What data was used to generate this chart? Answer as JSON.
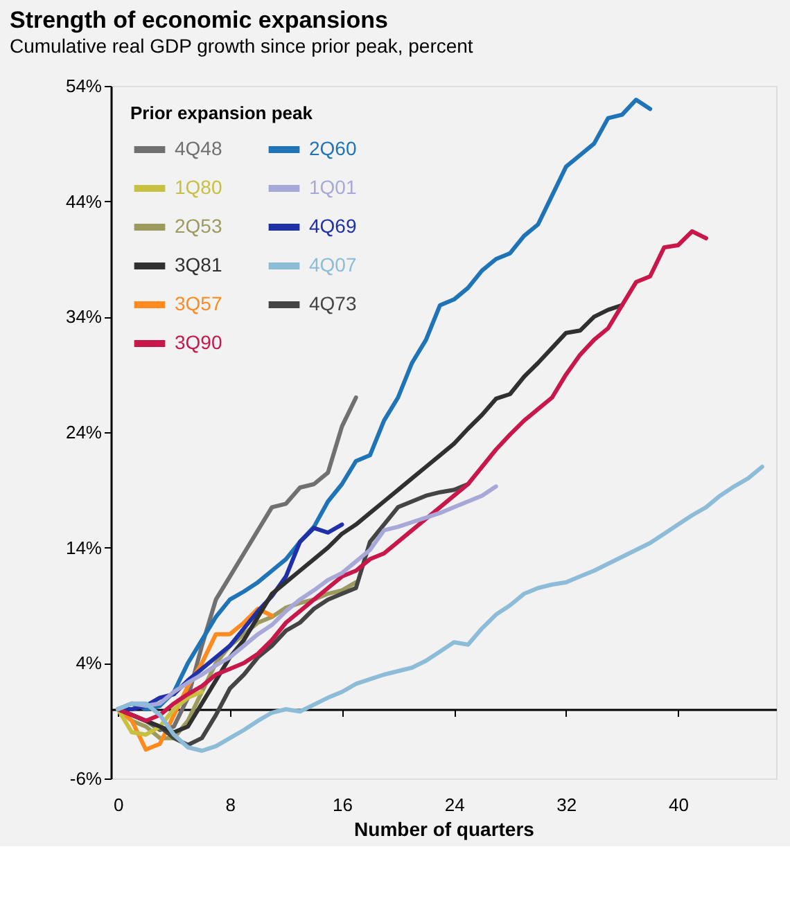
{
  "chart_data": {
    "type": "line",
    "title": "Strength of economic expansions",
    "subtitle": "Cumulative real GDP growth since prior peak, percent",
    "xlabel": "Number of quarters",
    "legend_title": "Prior expansion peak",
    "legend": "top left",
    "xlim": [
      -0.5,
      47
    ],
    "xticks": [
      0,
      8,
      16,
      24,
      32,
      40
    ],
    "ylim": [
      -6,
      54
    ],
    "yticks": [
      {
        "value": -6,
        "label": "-6%"
      },
      {
        "value": 4,
        "label": "4%"
      },
      {
        "value": 14,
        "label": "14%"
      },
      {
        "value": 24,
        "label": "24%"
      },
      {
        "value": 34,
        "label": "34%"
      },
      {
        "value": 44,
        "label": "44%"
      },
      {
        "value": 54,
        "label": "54%"
      }
    ],
    "series": [
      {
        "name": "4Q48",
        "color": "#707070",
        "x": [
          0,
          1,
          2,
          3,
          4,
          5,
          6,
          7,
          8,
          9,
          10,
          11,
          12,
          13,
          14,
          15,
          16,
          17
        ],
        "values": [
          0,
          -0.5,
          -1,
          -1.8,
          -1.5,
          1,
          5.5,
          9.5,
          11.5,
          13.5,
          15.5,
          17.5,
          17.8,
          19.2,
          19.5,
          20.5,
          24.5,
          27
        ]
      },
      {
        "name": "2Q53",
        "color": "#9c9a5c",
        "x": [
          0,
          1,
          2,
          3,
          4,
          5,
          6,
          7,
          8,
          9,
          10,
          11,
          12,
          13,
          14,
          15,
          16,
          17
        ],
        "values": [
          0,
          -1,
          -1.5,
          -2.5,
          -2.5,
          -1,
          1.5,
          4,
          5.5,
          6.5,
          7.5,
          8,
          8.8,
          9.2,
          9.5,
          10,
          10.3,
          11
        ]
      },
      {
        "name": "3Q57",
        "color": "#ff8a1e",
        "x": [
          0,
          1,
          2,
          3,
          4,
          5,
          6,
          7,
          8,
          9,
          10,
          11
        ],
        "values": [
          0,
          -1,
          -3.5,
          -3,
          -0.5,
          2,
          4,
          6.5,
          6.5,
          7.5,
          8.7,
          8.1
        ]
      },
      {
        "name": "2Q60",
        "color": "#1f74b8",
        "x": [
          0,
          1,
          2,
          3,
          4,
          5,
          6,
          7,
          8,
          9,
          10,
          11,
          12,
          13,
          14,
          15,
          16,
          17,
          18,
          19,
          20,
          21,
          22,
          23,
          24,
          25,
          26,
          27,
          28,
          29,
          30,
          31,
          32,
          33,
          34,
          35,
          36,
          37,
          38
        ],
        "values": [
          0,
          0.5,
          0,
          0.3,
          1.5,
          4,
          6,
          8,
          9.5,
          10.2,
          11,
          12,
          13,
          14.5,
          15.8,
          18,
          19.5,
          21.5,
          22,
          25,
          27,
          30,
          32,
          35,
          35.5,
          36.5,
          38,
          39,
          39.5,
          41,
          42,
          44.5,
          47,
          48,
          49,
          51.2,
          51.5,
          52.8,
          52
        ]
      },
      {
        "name": "4Q69",
        "color": "#2030a8",
        "x": [
          0,
          1,
          2,
          3,
          4,
          5,
          6,
          7,
          8,
          9,
          10,
          11,
          12,
          13,
          14,
          15,
          16
        ],
        "values": [
          0,
          0,
          0.3,
          1,
          1.3,
          2.5,
          3.5,
          4.5,
          5.5,
          7,
          8.5,
          9.8,
          11.5,
          14.5,
          15.7,
          15.3,
          16
        ]
      },
      {
        "name": "4Q73",
        "color": "#444444",
        "x": [
          0,
          1,
          2,
          3,
          4,
          5,
          6,
          7,
          8,
          9,
          10,
          11,
          12,
          13,
          14,
          15,
          16,
          17,
          18,
          19,
          20,
          21,
          22,
          23,
          24,
          25
        ],
        "values": [
          0,
          -0.5,
          -1,
          -1.5,
          -2.5,
          -3.1,
          -2.5,
          -0.5,
          1.8,
          3,
          4.5,
          5.5,
          6.8,
          7.5,
          8.7,
          9.5,
          10,
          10.5,
          14.5,
          16,
          17.5,
          18,
          18.5,
          18.8,
          19,
          19.5
        ]
      },
      {
        "name": "1Q80",
        "color": "#c8c040",
        "x": [
          0,
          1,
          2,
          3,
          4,
          5,
          6
        ],
        "values": [
          0,
          -2,
          -2.2,
          -1.5,
          0,
          1,
          1.5
        ]
      },
      {
        "name": "3Q81",
        "color": "#303030",
        "x": [
          0,
          1,
          2,
          3,
          4,
          5,
          6,
          7,
          8,
          9,
          10,
          11,
          12,
          13,
          14,
          15,
          16,
          17,
          18,
          19,
          20,
          21,
          22,
          23,
          24,
          25,
          26,
          27,
          28,
          29,
          30,
          31,
          32,
          33,
          34,
          35,
          36
        ],
        "values": [
          0,
          -0.5,
          -1,
          -1.5,
          -2,
          -1.5,
          0.5,
          2.5,
          4.5,
          6,
          8,
          10,
          11,
          12,
          13,
          14,
          15.2,
          16,
          17,
          18,
          19,
          20,
          21,
          22,
          23,
          24.3,
          25.5,
          26.9,
          27.3,
          28.8,
          30,
          31.3,
          32.6,
          32.8,
          34,
          34.6,
          35
        ]
      },
      {
        "name": "3Q90",
        "color": "#c8174a",
        "x": [
          0,
          1,
          2,
          3,
          4,
          5,
          6,
          7,
          8,
          9,
          10,
          11,
          12,
          13,
          14,
          15,
          16,
          17,
          18,
          19,
          20,
          21,
          22,
          23,
          24,
          25,
          26,
          27,
          28,
          29,
          30,
          31,
          32,
          33,
          34,
          35,
          36,
          37,
          38,
          39,
          40,
          41,
          42
        ],
        "values": [
          0,
          -0.5,
          -1,
          -0.5,
          0.5,
          1.3,
          2,
          3,
          3.5,
          4,
          4.8,
          6,
          7.5,
          8.5,
          9.5,
          10.5,
          11.5,
          12,
          13,
          13.5,
          14.5,
          15.5,
          16.5,
          17.5,
          18.5,
          19.5,
          21,
          22.5,
          23.8,
          25,
          26,
          27,
          29,
          30.7,
          32,
          33,
          35,
          37,
          37.5,
          40,
          40.2,
          41.4,
          40.8
        ]
      },
      {
        "name": "1Q01",
        "color": "#a8a8d8",
        "x": [
          0,
          1,
          2,
          3,
          4,
          5,
          6,
          7,
          8,
          9,
          10,
          11,
          12,
          13,
          14,
          15,
          16,
          17,
          18,
          19,
          20,
          21,
          22,
          23,
          24,
          25,
          26,
          27
        ],
        "values": [
          0,
          0.5,
          0.3,
          0.5,
          1.5,
          2.3,
          3,
          3.8,
          4.5,
          5.5,
          6.5,
          7.3,
          8.5,
          9.5,
          10.3,
          11.2,
          11.8,
          12.8,
          13.8,
          15.5,
          15.8,
          16.2,
          16.6,
          17,
          17.5,
          18,
          18.5,
          19.3
        ]
      },
      {
        "name": "4Q07",
        "color": "#8cbcd8",
        "x": [
          0,
          1,
          2,
          3,
          4,
          5,
          6,
          7,
          8,
          9,
          10,
          11,
          12,
          13,
          14,
          15,
          16,
          17,
          18,
          19,
          20,
          21,
          22,
          23,
          24,
          25,
          26,
          27,
          28,
          29,
          30,
          31,
          32,
          33,
          34,
          35,
          36,
          37,
          38,
          39,
          40,
          41,
          42,
          43,
          44,
          45,
          46
        ],
        "values": [
          0,
          0.5,
          0.5,
          -0.5,
          -2.2,
          -3.3,
          -3.6,
          -3.2,
          -2.5,
          -1.8,
          -1,
          -0.3,
          0,
          -0.2,
          0.4,
          1,
          1.5,
          2.2,
          2.6,
          3,
          3.3,
          3.6,
          4.2,
          5,
          5.8,
          5.6,
          7,
          8.2,
          9,
          10,
          10.5,
          10.8,
          11,
          11.5,
          12,
          12.6,
          13.2,
          13.8,
          14.4,
          15.2,
          16,
          16.8,
          17.5,
          18.5,
          19.3,
          20,
          21
        ]
      }
    ]
  }
}
